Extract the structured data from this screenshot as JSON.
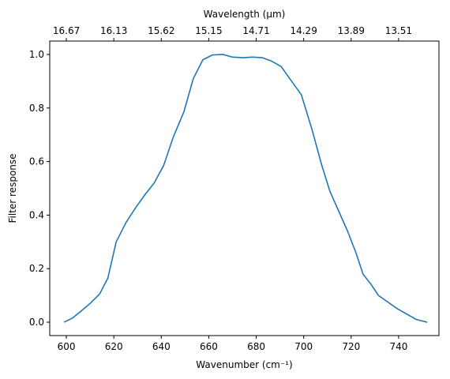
{
  "chart_data": {
    "type": "line",
    "xlabel": "Wavenumber (cm⁻¹)",
    "ylabel": "Filter response",
    "top_xlabel": "Wavelength (μm)",
    "xlim": [
      593,
      757
    ],
    "ylim": [
      -0.05,
      1.05
    ],
    "x_ticks": [
      600,
      620,
      640,
      660,
      680,
      700,
      720,
      740
    ],
    "y_ticks": [
      0.0,
      0.2,
      0.4,
      0.6,
      0.8,
      1.0
    ],
    "y_tick_labels": [
      "0.0",
      "0.2",
      "0.4",
      "0.6",
      "0.8",
      "1.0"
    ],
    "top_ticks": [
      600,
      620,
      640,
      660,
      680,
      700,
      720,
      740
    ],
    "top_tick_labels": [
      "16.67",
      "16.13",
      "15.62",
      "15.15",
      "14.71",
      "14.29",
      "13.89",
      "13.51"
    ],
    "grid": false,
    "series_color": "#1f77b4",
    "series": [
      {
        "x": [
          599,
          602.5,
          606,
          610,
          614,
          617.5,
          621,
          625,
          629,
          633,
          637,
          641,
          645,
          649.5,
          653.5,
          657.5,
          661.5,
          666,
          670,
          674.5,
          678.5,
          682.5,
          686.5,
          690.5,
          694.5,
          699,
          703.5,
          707.5,
          711,
          714.5,
          718.5,
          722,
          725,
          728.5,
          731.5,
          735.5,
          739.5,
          743.5,
          747.5,
          752
        ],
        "y": [
          0.0,
          0.015,
          0.04,
          0.07,
          0.105,
          0.165,
          0.3,
          0.37,
          0.425,
          0.475,
          0.52,
          0.585,
          0.69,
          0.785,
          0.91,
          0.98,
          0.998,
          1.0,
          0.99,
          0.988,
          0.99,
          0.988,
          0.975,
          0.955,
          0.905,
          0.85,
          0.72,
          0.59,
          0.49,
          0.42,
          0.34,
          0.26,
          0.18,
          0.14,
          0.1,
          0.075,
          0.05,
          0.03,
          0.01,
          0.0
        ]
      }
    ]
  }
}
